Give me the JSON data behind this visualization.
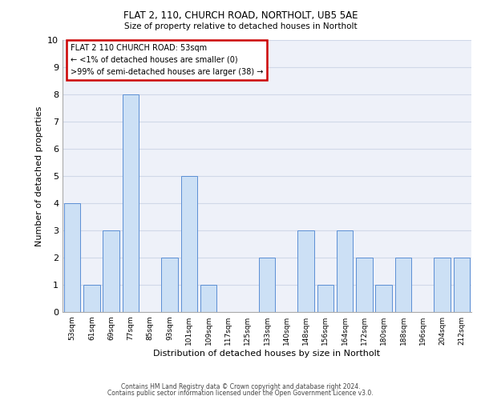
{
  "title1": "FLAT 2, 110, CHURCH ROAD, NORTHOLT, UB5 5AE",
  "title2": "Size of property relative to detached houses in Northolt",
  "xlabel": "Distribution of detached houses by size in Northolt",
  "ylabel": "Number of detached properties",
  "categories": [
    "53sqm",
    "61sqm",
    "69sqm",
    "77sqm",
    "85sqm",
    "93sqm",
    "101sqm",
    "109sqm",
    "117sqm",
    "125sqm",
    "133sqm",
    "140sqm",
    "148sqm",
    "156sqm",
    "164sqm",
    "172sqm",
    "180sqm",
    "188sqm",
    "196sqm",
    "204sqm",
    "212sqm"
  ],
  "values": [
    4,
    1,
    3,
    8,
    0,
    2,
    5,
    1,
    0,
    0,
    2,
    0,
    3,
    1,
    3,
    2,
    1,
    2,
    0,
    2,
    2
  ],
  "bar_color": "#cce0f5",
  "bar_edge_color": "#5b8fd4",
  "annotation_text": "FLAT 2 110 CHURCH ROAD: 53sqm\n← <1% of detached houses are smaller (0)\n>99% of semi-detached houses are larger (38) →",
  "annotation_box_color": "#ffffff",
  "annotation_border_color": "#cc0000",
  "ylim": [
    0,
    10
  ],
  "yticks": [
    0,
    1,
    2,
    3,
    4,
    5,
    6,
    7,
    8,
    9,
    10
  ],
  "grid_color": "#d0d8e8",
  "bg_color": "#eef1f9",
  "footer1": "Contains HM Land Registry data © Crown copyright and database right 2024.",
  "footer2": "Contains public sector information licensed under the Open Government Licence v3.0.",
  "bar_width": 0.85
}
